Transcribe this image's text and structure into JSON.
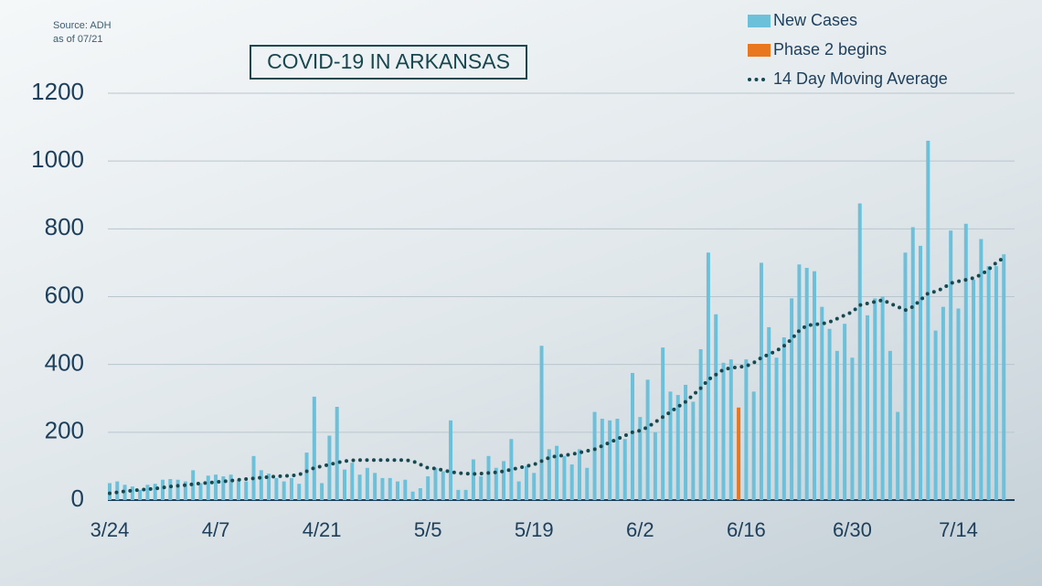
{
  "chart_data": {
    "type": "bar",
    "title": "COVID-19 IN ARKANSAS",
    "source": [
      "Source: ADH",
      "as of 07/21"
    ],
    "categories": [
      "3/24",
      null,
      null,
      null,
      null,
      null,
      null,
      null,
      null,
      null,
      null,
      null,
      null,
      null,
      "4/7",
      null,
      null,
      null,
      null,
      null,
      null,
      null,
      null,
      null,
      null,
      null,
      null,
      null,
      "4/21",
      null,
      null,
      null,
      null,
      null,
      null,
      null,
      null,
      null,
      null,
      null,
      null,
      null,
      "5/5",
      null,
      null,
      null,
      null,
      null,
      null,
      null,
      null,
      null,
      null,
      null,
      null,
      null,
      "5/19",
      null,
      null,
      null,
      null,
      null,
      null,
      null,
      null,
      null,
      null,
      null,
      null,
      null,
      "6/2",
      null,
      null,
      null,
      null,
      null,
      null,
      null,
      null,
      null,
      null,
      null,
      null,
      null,
      "6/16",
      null,
      null,
      null,
      null,
      null,
      null,
      null,
      null,
      null,
      null,
      null,
      null,
      null,
      "6/30",
      null,
      null,
      null,
      null,
      null,
      null,
      null,
      null,
      null,
      null,
      null,
      null,
      null,
      "7/14",
      null,
      null,
      null,
      null,
      null,
      null
    ],
    "series": [
      {
        "name": "New Cases",
        "color": "#6cc0da",
        "kind": "bar",
        "values": [
          50,
          55,
          45,
          40,
          30,
          45,
          48,
          60,
          62,
          60,
          55,
          88,
          50,
          72,
          75,
          70,
          75,
          60,
          55,
          130,
          88,
          78,
          65,
          55,
          65,
          48,
          140,
          305,
          50,
          190,
          275,
          90,
          110,
          75,
          95,
          80,
          65,
          65,
          55,
          60,
          25,
          35,
          70,
          95,
          85,
          235,
          30,
          30,
          120,
          70,
          130,
          95,
          115,
          180,
          55,
          100,
          80,
          455,
          150,
          160,
          130,
          105,
          150,
          95,
          260,
          240,
          235,
          240,
          180,
          375,
          245,
          355,
          200,
          450,
          320,
          310,
          340,
          290,
          445,
          730,
          548,
          405,
          415,
          null,
          415,
          320,
          700,
          510,
          420,
          480,
          595,
          695,
          685,
          675,
          570,
          505,
          440,
          520,
          420,
          875,
          545,
          595,
          600,
          440,
          260,
          730,
          805,
          750,
          1060,
          500,
          570,
          795,
          565,
          815,
          650,
          770,
          690,
          690,
          725
        ]
      },
      {
        "name": "Phase 2 begins",
        "color": "#e8771f",
        "kind": "bar",
        "values": [
          null,
          null,
          null,
          null,
          null,
          null,
          null,
          null,
          null,
          null,
          null,
          null,
          null,
          null,
          null,
          null,
          null,
          null,
          null,
          null,
          null,
          null,
          null,
          null,
          null,
          null,
          null,
          null,
          null,
          null,
          null,
          null,
          null,
          null,
          null,
          null,
          null,
          null,
          null,
          null,
          null,
          null,
          null,
          null,
          null,
          null,
          null,
          null,
          null,
          null,
          null,
          null,
          null,
          null,
          null,
          null,
          null,
          null,
          null,
          null,
          null,
          null,
          null,
          null,
          null,
          null,
          null,
          null,
          null,
          null,
          null,
          null,
          null,
          null,
          null,
          null,
          null,
          null,
          null,
          null,
          null,
          null,
          null,
          273,
          null,
          null,
          null,
          null,
          null,
          null,
          null,
          null,
          null,
          null,
          null,
          null,
          null,
          null,
          null,
          null,
          null,
          null,
          null,
          null,
          null,
          null,
          null,
          null,
          null,
          null,
          null,
          null,
          null,
          null,
          null,
          null,
          null,
          null,
          null
        ]
      },
      {
        "name": "14 Day Moving Average",
        "color": "#17474f",
        "kind": "dots",
        "values": [
          20,
          23,
          26,
          28,
          30,
          32,
          34,
          37,
          40,
          42,
          44,
          47,
          49,
          51,
          53,
          55,
          57,
          60,
          62,
          64,
          66,
          68,
          70,
          71,
          72,
          75,
          85,
          95,
          100,
          105,
          110,
          115,
          117,
          118,
          118,
          118,
          118,
          118,
          118,
          118,
          115,
          105,
          95,
          93,
          88,
          83,
          80,
          78,
          77,
          78,
          80,
          82,
          85,
          90,
          95,
          100,
          105,
          115,
          125,
          130,
          132,
          135,
          140,
          145,
          150,
          160,
          170,
          180,
          190,
          200,
          205,
          215,
          230,
          245,
          260,
          275,
          290,
          310,
          330,
          355,
          370,
          385,
          390,
          392,
          395,
          405,
          420,
          430,
          440,
          455,
          475,
          500,
          515,
          518,
          520,
          525,
          535,
          545,
          555,
          575,
          580,
          585,
          590,
          580,
          570,
          560,
          570,
          590,
          610,
          615,
          625,
          640,
          645,
          650,
          655,
          665,
          680,
          700,
          715
        ]
      }
    ],
    "ylim": [
      0,
      1200
    ],
    "yticks": [
      0,
      200,
      400,
      600,
      800,
      1000,
      1200
    ],
    "grid": true
  }
}
